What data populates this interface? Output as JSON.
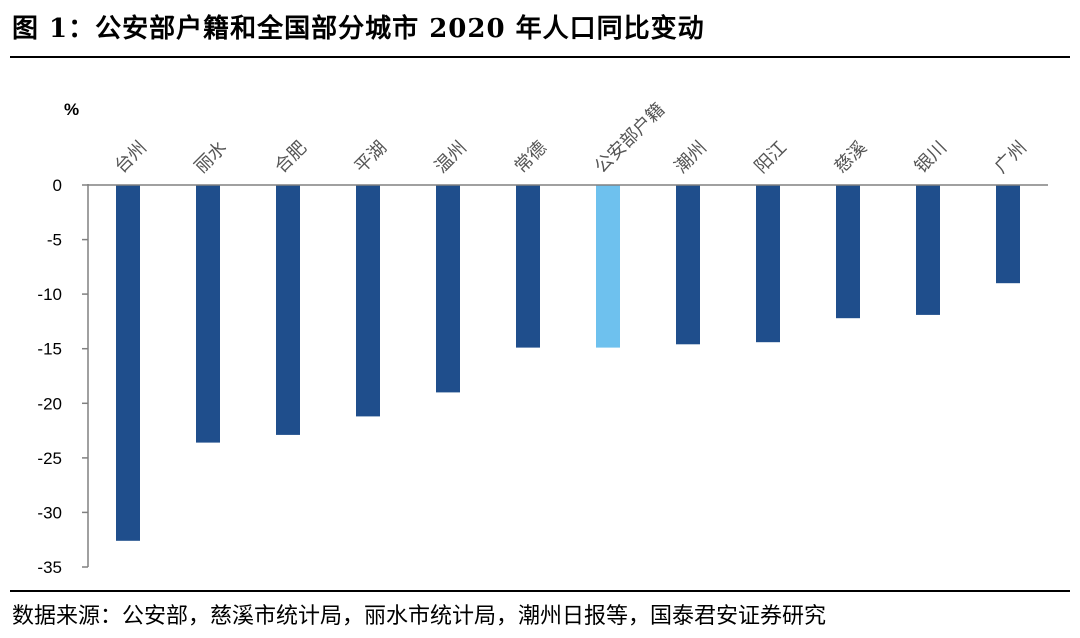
{
  "header": {
    "title": "图 1：公安部户籍和全国部分城市 2020 年人口同比变动"
  },
  "footer": {
    "source": "数据来源：公安部，慈溪市统计局，丽水市统计局，潮州日报等，国泰君安证券研究"
  },
  "chart_data": {
    "type": "bar",
    "unit": "%",
    "categories": [
      "台州",
      "丽水",
      "合肥",
      "平湖",
      "温州",
      "常德",
      "公安部户籍",
      "潮州",
      "阳江",
      "慈溪",
      "银川",
      "广州"
    ],
    "values": [
      -32.6,
      -23.6,
      -22.9,
      -21.2,
      -19.0,
      -14.9,
      -14.9,
      -14.6,
      -14.4,
      -12.2,
      -11.9,
      -9.0
    ],
    "highlight_category": "公安部户籍",
    "colors": {
      "bar": "#1f4e8c",
      "highlight": "#6ec1ee",
      "axis": "#808080"
    },
    "ylim": [
      -35,
      0
    ],
    "yticks": [
      0,
      -5,
      -10,
      -15,
      -20,
      -25,
      -30,
      -35
    ],
    "legend": "none",
    "grid": false
  }
}
